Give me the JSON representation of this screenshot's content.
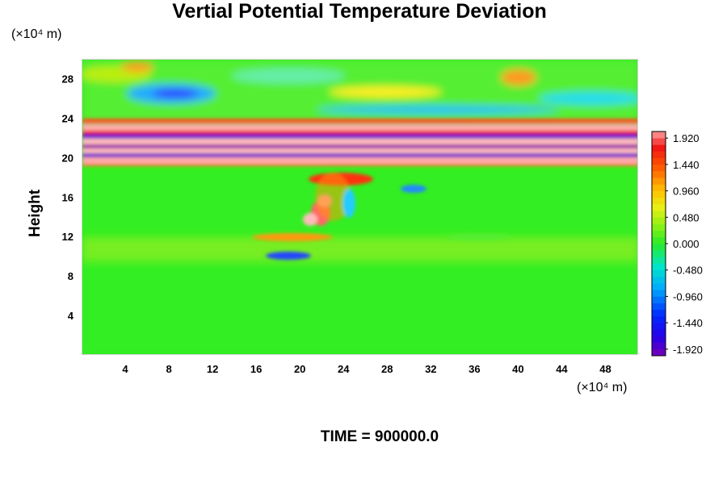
{
  "chart_data": {
    "type": "heatmap",
    "title": "Vertial Potential Temperature Deviation",
    "xlabel": "",
    "ylabel": "Height",
    "x_unit": "(×10⁴ m)",
    "y_unit": "(×10⁴ m)",
    "x_ticks": [
      4,
      8,
      12,
      16,
      20,
      24,
      28,
      32,
      36,
      40,
      44,
      48
    ],
    "y_ticks": [
      4,
      8,
      12,
      16,
      20,
      24,
      28
    ],
    "xlim": [
      0,
      51
    ],
    "ylim": [
      0,
      30
    ],
    "colorbar": {
      "min": -2.04,
      "max": 2.04,
      "labels": [
        "1.920",
        "1.440",
        "0.960",
        "0.480",
        "0.000",
        "-0.480",
        "-0.960",
        "-1.440",
        "-1.920"
      ],
      "label_values": [
        1.92,
        1.44,
        0.96,
        0.48,
        0.0,
        -0.48,
        -0.96,
        -1.44,
        -1.92
      ],
      "n_levels": 34
    },
    "time_label": "TIME = 900000.0"
  }
}
